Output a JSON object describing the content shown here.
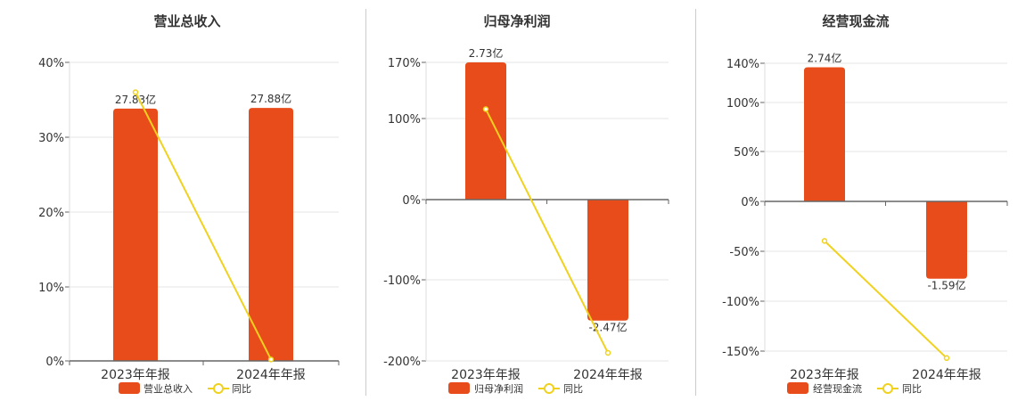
{
  "colors": {
    "bar": "#E84C1B",
    "line": "#F0D21E",
    "grid": "#e6e6e6",
    "axis": "#666666",
    "text": "#333333"
  },
  "chart_data": [
    {
      "type": "bar",
      "title": "营业总收入",
      "categories": [
        "2023年年报",
        "2024年年报"
      ],
      "series": [
        {
          "name": "营业总收入",
          "type": "bar",
          "values": [
            27.83,
            27.88
          ],
          "labels": [
            "27.83亿",
            "27.88亿"
          ]
        },
        {
          "name": "同比",
          "type": "line",
          "values": [
            36,
            0.2
          ]
        }
      ],
      "yticks": [
        "40%",
        "30%",
        "20%",
        "10%",
        "0%"
      ],
      "ylim": [
        0,
        40
      ],
      "bar_pct": [
        33.8,
        33.9
      ],
      "grid": true,
      "legend": "bottom-center"
    },
    {
      "type": "bar",
      "title": "归母净利润",
      "categories": [
        "2023年年报",
        "2024年年报"
      ],
      "series": [
        {
          "name": "归母净利润",
          "type": "bar",
          "values": [
            2.73,
            -2.47
          ],
          "labels": [
            "2.73亿",
            "-2.47亿"
          ]
        },
        {
          "name": "同比",
          "type": "line",
          "values": [
            112,
            -190
          ]
        }
      ],
      "yticks": [
        "170%",
        "100%",
        "0%",
        "-100%",
        "-200%"
      ],
      "ylim": [
        -200,
        170
      ],
      "bar_pct": [
        170,
        -150
      ],
      "grid": true,
      "legend": "bottom-center"
    },
    {
      "type": "bar",
      "title": "经营现金流",
      "categories": [
        "2023年年报",
        "2024年年报"
      ],
      "series": [
        {
          "name": "经营现金流",
          "type": "bar",
          "values": [
            2.74,
            -1.59
          ],
          "labels": [
            "2.74亿",
            "-1.59亿"
          ]
        },
        {
          "name": "同比",
          "type": "line",
          "values": [
            -39,
            -157
          ]
        }
      ],
      "yticks": [
        "140%",
        "100%",
        "50%",
        "0%",
        "-50%",
        "-100%",
        "-150%"
      ],
      "ylim": [
        -157,
        140
      ],
      "bar_pct": [
        136,
        -77
      ],
      "grid": true,
      "legend": "bottom-center"
    }
  ]
}
